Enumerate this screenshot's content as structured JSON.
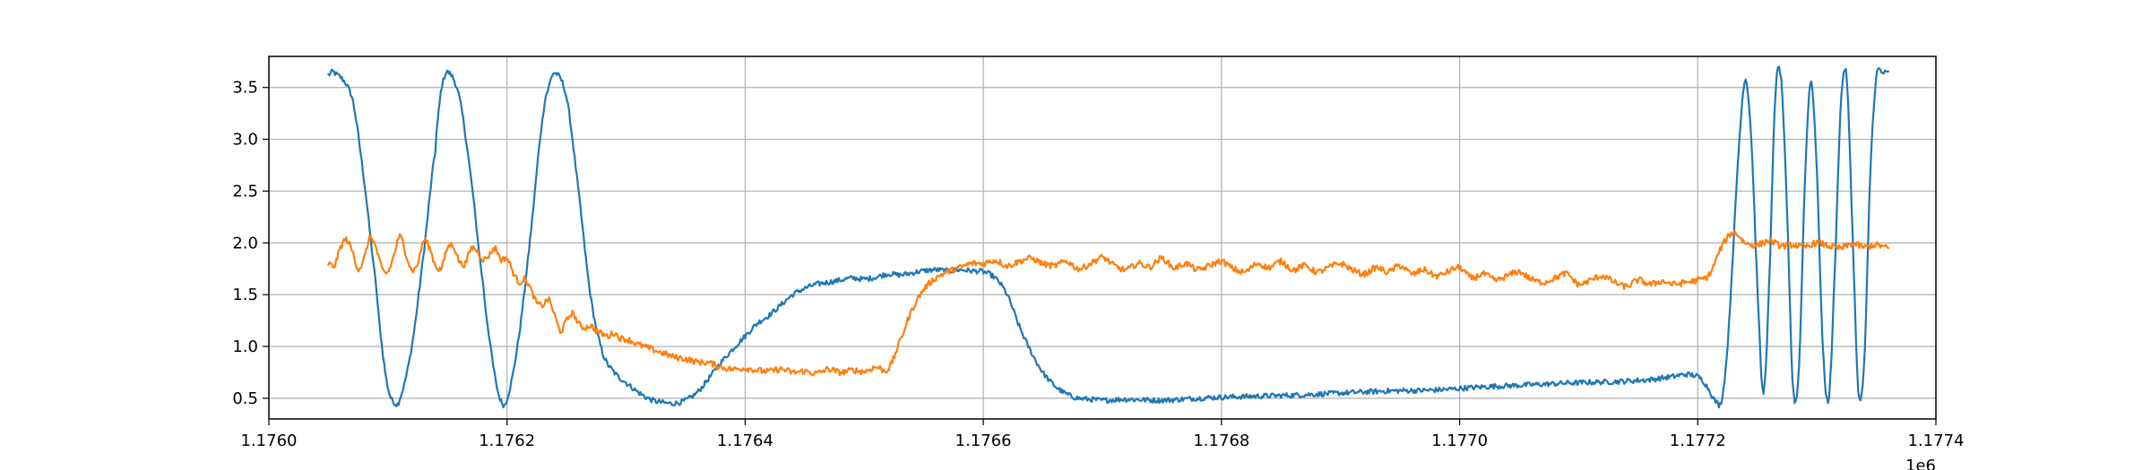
{
  "chart_data": {
    "type": "line",
    "title": "",
    "xlabel": "",
    "ylabel": "",
    "x_offset_label": "1e6",
    "xlim": [
      1.176,
      1.1774
    ],
    "ylim": [
      0.3,
      3.8
    ],
    "x_ticks": [
      1.176,
      1.1762,
      1.1764,
      1.1766,
      1.1768,
      1.177,
      1.1772,
      1.1774
    ],
    "x_tick_labels": [
      "1.1760",
      "1.1762",
      "1.1764",
      "1.1766",
      "1.1768",
      "1.1770",
      "1.1772",
      "1.1774"
    ],
    "y_ticks": [
      0.5,
      1.0,
      1.5,
      2.0,
      2.5,
      3.0,
      3.5
    ],
    "y_tick_labels": [
      "0.5",
      "1.0",
      "1.5",
      "2.0",
      "2.5",
      "3.0",
      "3.5"
    ],
    "grid": true,
    "legend": "none",
    "series": [
      {
        "color": "#1f77b4",
        "x": [
          1.17605,
          1.176055,
          1.17607,
          1.17608,
          1.17609,
          1.176095,
          1.1761,
          1.176105,
          1.17611,
          1.17612,
          1.17613,
          1.17614,
          1.176142,
          1.176145,
          1.17615,
          1.17616,
          1.17617,
          1.17618,
          1.176185,
          1.17619,
          1.176195,
          1.1762,
          1.17621,
          1.17622,
          1.17623,
          1.176235,
          1.17624,
          1.17625,
          1.17626,
          1.17627,
          1.17628,
          1.17629,
          1.1763,
          1.17631,
          1.17632,
          1.17633,
          1.17634,
          1.17635,
          1.17636,
          1.17637,
          1.17638,
          1.17639,
          1.1764,
          1.17641,
          1.17642,
          1.17643,
          1.17644,
          1.17645,
          1.17646,
          1.17647,
          1.17648,
          1.17649,
          1.1765,
          1.17651,
          1.17652,
          1.17653,
          1.17654,
          1.17655,
          1.17656,
          1.17657,
          1.17658,
          1.17659,
          1.1766,
          1.17661,
          1.17662,
          1.17663,
          1.17664,
          1.17665,
          1.17666,
          1.17667,
          1.17668,
          1.17669,
          1.1767,
          1.17672,
          1.17675,
          1.17678,
          1.1768,
          1.17683,
          1.17686,
          1.1769,
          1.17694,
          1.17698,
          1.17702,
          1.17706,
          1.1771,
          1.17713,
          1.17716,
          1.17718,
          1.17719,
          1.1772,
          1.177205,
          1.17721,
          1.177215,
          1.17722,
          1.177225,
          1.17723,
          1.177235,
          1.17724,
          1.177245,
          1.17725,
          1.177255,
          1.17726,
          1.177265,
          1.17727,
          1.177275,
          1.17728,
          1.177285,
          1.17729,
          1.177295,
          1.1773,
          1.177305,
          1.17731,
          1.177315,
          1.17732,
          1.177325,
          1.17733,
          1.177335,
          1.17734,
          1.177345,
          1.17735,
          1.177355,
          1.17736
        ],
        "y": [
          3.62,
          3.64,
          3.4,
          2.6,
          1.6,
          1.0,
          0.6,
          0.46,
          0.5,
          1.0,
          1.9,
          2.9,
          3.2,
          3.5,
          3.65,
          3.4,
          2.6,
          1.6,
          1.1,
          0.7,
          0.47,
          0.5,
          1.1,
          2.1,
          3.2,
          3.5,
          3.64,
          3.4,
          2.5,
          1.5,
          0.95,
          0.75,
          0.65,
          0.56,
          0.49,
          0.46,
          0.45,
          0.48,
          0.56,
          0.7,
          0.85,
          0.98,
          1.1,
          1.22,
          1.3,
          1.4,
          1.5,
          1.56,
          1.6,
          1.62,
          1.64,
          1.66,
          1.65,
          1.67,
          1.7,
          1.69,
          1.71,
          1.73,
          1.74,
          1.73,
          1.74,
          1.73,
          1.72,
          1.66,
          1.5,
          1.2,
          0.95,
          0.75,
          0.62,
          0.54,
          0.5,
          0.49,
          0.48,
          0.49,
          0.48,
          0.5,
          0.51,
          0.52,
          0.53,
          0.55,
          0.57,
          0.58,
          0.61,
          0.63,
          0.65,
          0.66,
          0.68,
          0.71,
          0.73,
          0.71,
          0.66,
          0.57,
          0.47,
          0.48,
          1.0,
          2.0,
          3.0,
          3.58,
          3.0,
          1.6,
          0.55,
          1.6,
          3.4,
          3.58,
          2.3,
          0.6,
          0.8,
          2.6,
          3.56,
          2.7,
          1.0,
          0.5,
          1.7,
          3.3,
          3.6,
          2.1,
          0.55,
          0.9,
          2.7,
          3.6,
          3.64,
          3.64
        ],
        "noise": 0.025
      },
      {
        "color": "#ff7f0e",
        "x": [
          1.17605,
          1.176055,
          1.17606,
          1.176065,
          1.17607,
          1.176075,
          1.17608,
          1.176085,
          1.17609,
          1.176095,
          1.1761,
          1.176105,
          1.17611,
          1.176115,
          1.17612,
          1.176125,
          1.17613,
          1.176135,
          1.17614,
          1.176145,
          1.17615,
          1.176155,
          1.17616,
          1.176165,
          1.17617,
          1.176175,
          1.17618,
          1.176185,
          1.17619,
          1.176195,
          1.1762,
          1.176205,
          1.17621,
          1.176215,
          1.17622,
          1.176225,
          1.17623,
          1.176235,
          1.17624,
          1.176245,
          1.17625,
          1.176255,
          1.17626,
          1.176265,
          1.17627,
          1.176275,
          1.17628,
          1.176285,
          1.17629,
          1.176295,
          1.1763,
          1.17631,
          1.17632,
          1.17633,
          1.17634,
          1.17635,
          1.17636,
          1.17637,
          1.17638,
          1.17639,
          1.1764,
          1.17641,
          1.17642,
          1.17643,
          1.17644,
          1.17645,
          1.17646,
          1.17647,
          1.17648,
          1.17649,
          1.1765,
          1.17651,
          1.17652,
          1.17653,
          1.17654,
          1.17655,
          1.17656,
          1.17657,
          1.17658,
          1.17659,
          1.1766,
          1.17661,
          1.17662,
          1.17663,
          1.17664,
          1.17665,
          1.17666,
          1.17667,
          1.17668,
          1.17669,
          1.1767,
          1.17671,
          1.17672,
          1.17673,
          1.17674,
          1.17675,
          1.17676,
          1.17677,
          1.17678,
          1.17679,
          1.1768,
          1.17681,
          1.17682,
          1.17683,
          1.17684,
          1.17685,
          1.17686,
          1.17687,
          1.17688,
          1.17689,
          1.1769,
          1.17691,
          1.17692,
          1.17693,
          1.17694,
          1.17695,
          1.17696,
          1.17697,
          1.17698,
          1.17699,
          1.177,
          1.17701,
          1.17702,
          1.17703,
          1.17704,
          1.17705,
          1.17706,
          1.17707,
          1.17708,
          1.17709,
          1.1771,
          1.17711,
          1.17712,
          1.17713,
          1.17714,
          1.17715,
          1.17716,
          1.17717,
          1.17718,
          1.17719,
          1.1772,
          1.17721,
          1.17722,
          1.17723,
          1.17724,
          1.17725,
          1.17726,
          1.17727,
          1.17728,
          1.17729,
          1.1773,
          1.17731,
          1.17732,
          1.17733,
          1.17734,
          1.17735,
          1.17736
        ],
        "y": [
          1.8,
          1.78,
          1.95,
          2.03,
          1.92,
          1.75,
          1.85,
          2.05,
          1.95,
          1.75,
          1.72,
          1.88,
          2.06,
          1.9,
          1.74,
          1.8,
          2.02,
          1.95,
          1.78,
          1.76,
          1.95,
          1.97,
          1.82,
          1.8,
          1.95,
          1.92,
          1.84,
          1.88,
          1.95,
          1.84,
          1.85,
          1.72,
          1.62,
          1.65,
          1.55,
          1.42,
          1.4,
          1.45,
          1.3,
          1.15,
          1.25,
          1.32,
          1.22,
          1.18,
          1.2,
          1.15,
          1.12,
          1.1,
          1.13,
          1.08,
          1.07,
          1.02,
          0.98,
          0.94,
          0.9,
          0.88,
          0.85,
          0.84,
          0.8,
          0.78,
          0.79,
          0.77,
          0.76,
          0.78,
          0.75,
          0.76,
          0.74,
          0.78,
          0.75,
          0.77,
          0.76,
          0.8,
          0.78,
          1.05,
          1.35,
          1.55,
          1.66,
          1.72,
          1.76,
          1.8,
          1.8,
          1.83,
          1.78,
          1.82,
          1.85,
          1.8,
          1.78,
          1.82,
          1.75,
          1.8,
          1.86,
          1.78,
          1.74,
          1.8,
          1.77,
          1.85,
          1.76,
          1.8,
          1.74,
          1.78,
          1.82,
          1.75,
          1.72,
          1.8,
          1.76,
          1.82,
          1.74,
          1.78,
          1.72,
          1.76,
          1.8,
          1.74,
          1.7,
          1.76,
          1.72,
          1.78,
          1.7,
          1.74,
          1.68,
          1.72,
          1.76,
          1.66,
          1.7,
          1.64,
          1.68,
          1.72,
          1.65,
          1.62,
          1.66,
          1.7,
          1.6,
          1.64,
          1.68,
          1.62,
          1.58,
          1.64,
          1.6,
          1.63,
          1.6,
          1.62,
          1.64,
          1.7,
          1.96,
          2.1,
          2.0,
          1.98,
          2.02,
          1.97,
          1.98,
          1.96,
          2.0,
          1.97,
          1.95,
          1.99,
          1.96,
          1.98,
          1.95
        ],
        "noise": 0.03
      }
    ]
  }
}
